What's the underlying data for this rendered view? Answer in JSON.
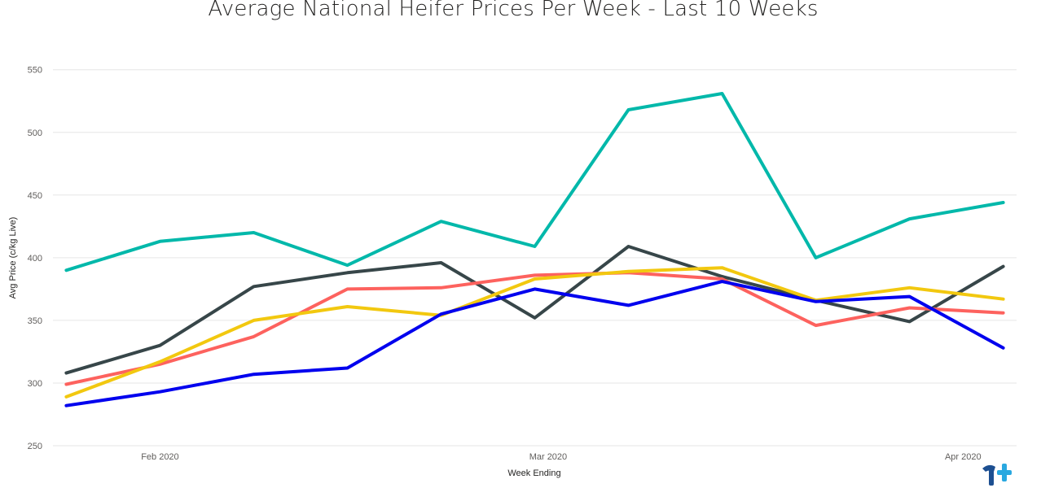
{
  "page": {
    "title": "Average National Heifer Prices Per Week - Last 10 Weeks"
  },
  "chart_data": {
    "type": "line",
    "title": "Average National Heifer Prices Per Week - Last 10 Weeks",
    "xlabel": "Week Ending",
    "ylabel": "Avg Price (c/kg Live)",
    "ylim": [
      250,
      555
    ],
    "yticks": [
      250,
      300,
      350,
      400,
      450,
      500,
      550
    ],
    "x": [
      "2020-01-25",
      "2020-02-01",
      "2020-02-08",
      "2020-02-15",
      "2020-02-22",
      "2020-02-29",
      "2020-03-07",
      "2020-03-14",
      "2020-03-21",
      "2020-03-28",
      "2020-04-04"
    ],
    "xlim": [
      "2020-01-24",
      "2020-04-05"
    ],
    "xticks": [
      {
        "date": "2020-02-01",
        "label": "Feb 2020"
      },
      {
        "date": "2020-03-01",
        "label": "Mar 2020"
      },
      {
        "date": "2020-04-01",
        "label": "Apr 2020"
      }
    ],
    "grid": true,
    "legend_position": "bottom (cropped)",
    "series": [
      {
        "color": "#01b8aa",
        "values": [
          390,
          413,
          420,
          394,
          429,
          409,
          518,
          531,
          400,
          431,
          444
        ]
      },
      {
        "color": "#374649",
        "values": [
          308,
          330,
          377,
          388,
          396,
          352,
          409,
          385,
          366,
          349,
          393
        ]
      },
      {
        "color": "#fd625e",
        "values": [
          299,
          315,
          337,
          375,
          376,
          386,
          388,
          383,
          346,
          360,
          356
        ]
      },
      {
        "color": "#f2c80f",
        "values": [
          289,
          317,
          350,
          361,
          354,
          383,
          389,
          392,
          366,
          376,
          367
        ]
      },
      {
        "color": "#0000ee",
        "values": [
          282,
          293,
          307,
          312,
          355,
          375,
          362,
          381,
          365,
          369,
          328
        ]
      }
    ]
  },
  "logo": {
    "name": "brand-logo"
  }
}
